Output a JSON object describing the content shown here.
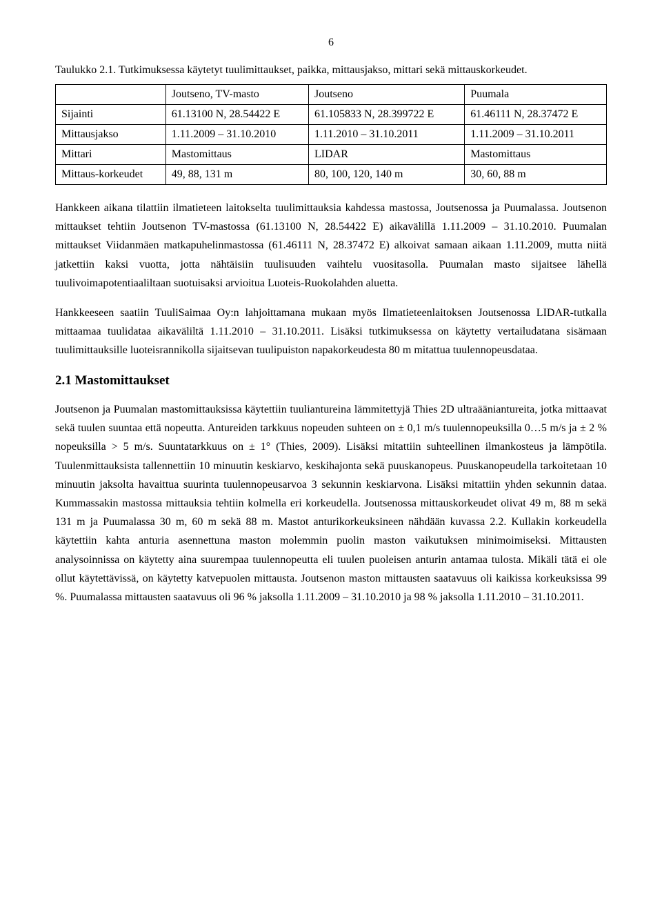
{
  "page": {
    "number": "6"
  },
  "table": {
    "caption": "Taulukko 2.1. Tutkimuksessa käytetyt tuulimittaukset, paikka, mittausjakso, mittari sekä mittauskorkeudet.",
    "header": {
      "blank": "",
      "col1": "Joutseno, TV-masto",
      "col2": "Joutseno",
      "col3": "Puumala"
    },
    "rows": {
      "sijainti": {
        "label": "Sijainti",
        "c1": "61.13100 N, 28.54422 E",
        "c2": "61.105833 N, 28.399722 E",
        "c3": "61.46111 N, 28.37472 E"
      },
      "mittausjakso": {
        "label": "Mittausjakso",
        "c1": "1.11.2009 – 31.10.2010",
        "c2": "1.11.2010 – 31.10.2011",
        "c3": "1.11.2009 – 31.10.2011"
      },
      "mittari": {
        "label": "Mittari",
        "c1": "Mastomittaus",
        "c2": "LIDAR",
        "c3": "Mastomittaus"
      },
      "mittauskorkeudet": {
        "label": "Mittaus-korkeudet",
        "c1": "49, 88, 131 m",
        "c2": "80, 100, 120, 140 m",
        "c3": "30, 60, 88 m"
      }
    }
  },
  "paragraphs": {
    "p1": "Hankkeen aikana tilattiin ilmatieteen laitokselta tuulimittauksia kahdessa mastossa, Joutsenossa ja Puumalassa. Joutsenon mittaukset tehtiin Joutsenon TV-mastossa (61.13100 N, 28.54422 E) aikavälillä 1.11.2009 – 31.10.2010. Puumalan mittaukset Viidanmäen matkapuhelinmastossa (61.46111 N, 28.37472 E) alkoivat samaan aikaan 1.11.2009, mutta niitä jatkettiin kaksi vuotta, jotta nähtäisiin tuulisuuden vaihtelu vuositasolla. Puumalan masto sijaitsee lähellä tuulivoimapotentiaaliltaan suotuisaksi arvioitua Luoteis-Ruokolahden aluetta.",
    "p2": "Hankkeeseen saatiin TuuliSaimaa Oy:n lahjoittamana mukaan myös Ilmatieteenlaitoksen Joutsenossa LIDAR-tutkalla mittaamaa tuulidataa aikaväliltä 1.11.2010 – 31.10.2011. Lisäksi tutkimuksessa on käytetty vertailudatana sisämaan tuulimittauksille luoteisrannikolla sijaitsevan tuulipuiston napakorkeudesta 80 m mitattua tuulennopeusdataa.",
    "p3": "Joutsenon ja Puumalan mastomittauksissa käytettiin tuuliantureina lämmitettyjä Thies 2D ultraääniantureita, jotka mittaavat sekä tuulen suuntaa että nopeutta. Antureiden tarkkuus nopeuden suhteen on ± 0,1 m/s tuulennopeuksilla 0…5 m/s ja ± 2 % nopeuksilla > 5 m/s. Suuntatarkkuus on ± 1° (Thies, 2009). Lisäksi mitattiin suhteellinen ilmankosteus ja lämpötila. Tuulenmittauksista tallennettiin 10 minuutin keskiarvo, keskihajonta sekä puuskanopeus. Puuskanopeudella tarkoitetaan 10 minuutin jaksolta havaittua suurinta tuulennopeusarvoa 3 sekunnin keskiarvona. Lisäksi mitattiin yhden sekunnin dataa. Kummassakin mastossa mittauksia tehtiin kolmella eri korkeudella. Joutsenossa mittauskorkeudet olivat 49 m, 88 m sekä 131 m ja Puumalassa 30 m, 60 m sekä 88 m. Mastot anturikorkeuksineen nähdään kuvassa 2.2. Kullakin korkeudella käytettiin kahta anturia asennettuna maston molemmin puolin maston vaikutuksen minimoimiseksi. Mittausten analysoinnissa on käytetty aina suurempaa tuulennopeutta eli tuulen puoleisen anturin antamaa tulosta. Mikäli tätä ei ole ollut käytettävissä, on käytetty katvepuolen mittausta. Joutsenon maston mittausten saatavuus oli kaikissa korkeuksissa 99 %. Puumalassa mittausten saatavuus oli 96 % jaksolla 1.11.2009 – 31.10.2010 ja 98 % jaksolla 1.11.2010 – 31.10.2011."
  },
  "section": {
    "heading": "2.1 Mastomittaukset"
  }
}
